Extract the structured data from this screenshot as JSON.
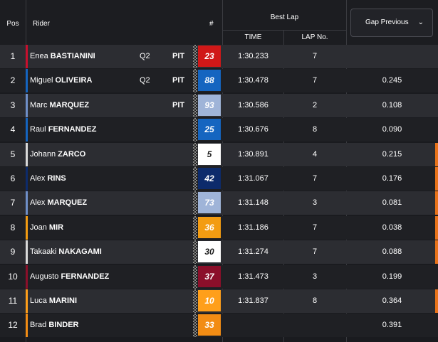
{
  "header": {
    "pos": "Pos",
    "rider": "Rider",
    "number": "#",
    "best_lap": "Best Lap",
    "time": "TIME",
    "lap_no": "LAP No.",
    "sort_label": "Gap Previous",
    "sort_icon": "chevron-down-icon"
  },
  "rows": [
    {
      "pos": "1",
      "first": "Enea",
      "last": "BASTIANINI",
      "q": "Q2",
      "pit": "PIT",
      "num": "23",
      "num_bg": "#d01818",
      "num_fg": "#ffffff",
      "bar": "#c8102e",
      "time": "1:30.233",
      "lap": "7",
      "gap": ""
    },
    {
      "pos": "2",
      "first": "Miguel",
      "last": "OLIVEIRA",
      "q": "Q2",
      "pit": "PIT",
      "num": "88",
      "num_bg": "#1565c0",
      "num_fg": "#ffffff",
      "bar": "#1565c0",
      "time": "1:30.478",
      "lap": "7",
      "gap": "0.245"
    },
    {
      "pos": "3",
      "first": "Marc",
      "last": "MARQUEZ",
      "q": "",
      "pit": "PIT",
      "num": "93",
      "num_bg": "#9fb4d8",
      "num_fg": "#ffffff",
      "bar": "#6f8fc8",
      "time": "1:30.586",
      "lap": "2",
      "gap": "0.108"
    },
    {
      "pos": "4",
      "first": "Raul",
      "last": "FERNANDEZ",
      "q": "",
      "pit": "",
      "num": "25",
      "num_bg": "#1565c0",
      "num_fg": "#ffffff",
      "bar": "#1565c0",
      "time": "1:30.676",
      "lap": "8",
      "gap": "0.090"
    },
    {
      "pos": "5",
      "first": "Johann",
      "last": "ZARCO",
      "q": "",
      "pit": "",
      "num": "5",
      "num_bg": "#ffffff",
      "num_fg": "#1a1a1a",
      "bar": "#d9d9d9",
      "time": "1:30.891",
      "lap": "4",
      "gap": "0.215"
    },
    {
      "pos": "6",
      "first": "Alex",
      "last": "RINS",
      "q": "",
      "pit": "",
      "num": "42",
      "num_bg": "#0d2b6b",
      "num_fg": "#ffffff",
      "bar": "#0d2b6b",
      "time": "1:31.067",
      "lap": "7",
      "gap": "0.176"
    },
    {
      "pos": "7",
      "first": "Alex",
      "last": "MARQUEZ",
      "q": "",
      "pit": "",
      "num": "73",
      "num_bg": "#9fb4d8",
      "num_fg": "#ffffff",
      "bar": "#6f8fc8",
      "time": "1:31.148",
      "lap": "3",
      "gap": "0.081"
    },
    {
      "pos": "8",
      "first": "Joan",
      "last": "MIR",
      "q": "",
      "pit": "",
      "num": "36",
      "num_bg": "#f39c12",
      "num_fg": "#ffffff",
      "bar": "#f39c12",
      "time": "1:31.186",
      "lap": "7",
      "gap": "0.038"
    },
    {
      "pos": "9",
      "first": "Takaaki",
      "last": "NAKAGAMI",
      "q": "",
      "pit": "",
      "num": "30",
      "num_bg": "#ffffff",
      "num_fg": "#1a1a1a",
      "bar": "#d9d9d9",
      "time": "1:31.274",
      "lap": "7",
      "gap": "0.088"
    },
    {
      "pos": "10",
      "first": "Augusto",
      "last": "FERNANDEZ",
      "q": "",
      "pit": "",
      "num": "37",
      "num_bg": "#8b0f2a",
      "num_fg": "#ffffff",
      "bar": "#8b0f2a",
      "time": "1:31.473",
      "lap": "3",
      "gap": "0.199"
    },
    {
      "pos": "11",
      "first": "Luca",
      "last": "MARINI",
      "q": "",
      "pit": "",
      "num": "10",
      "num_bg": "#ff9f1a",
      "num_fg": "#ffffff",
      "bar": "#ff9f1a",
      "time": "1:31.837",
      "lap": "8",
      "gap": "0.364"
    },
    {
      "pos": "12",
      "first": "Brad",
      "last": "BINDER",
      "q": "",
      "pit": "",
      "num": "33",
      "num_bg": "#f28c14",
      "num_fg": "#ffffff",
      "bar": "#f28c14",
      "time": "",
      "lap": "",
      "gap": "0.391"
    }
  ]
}
